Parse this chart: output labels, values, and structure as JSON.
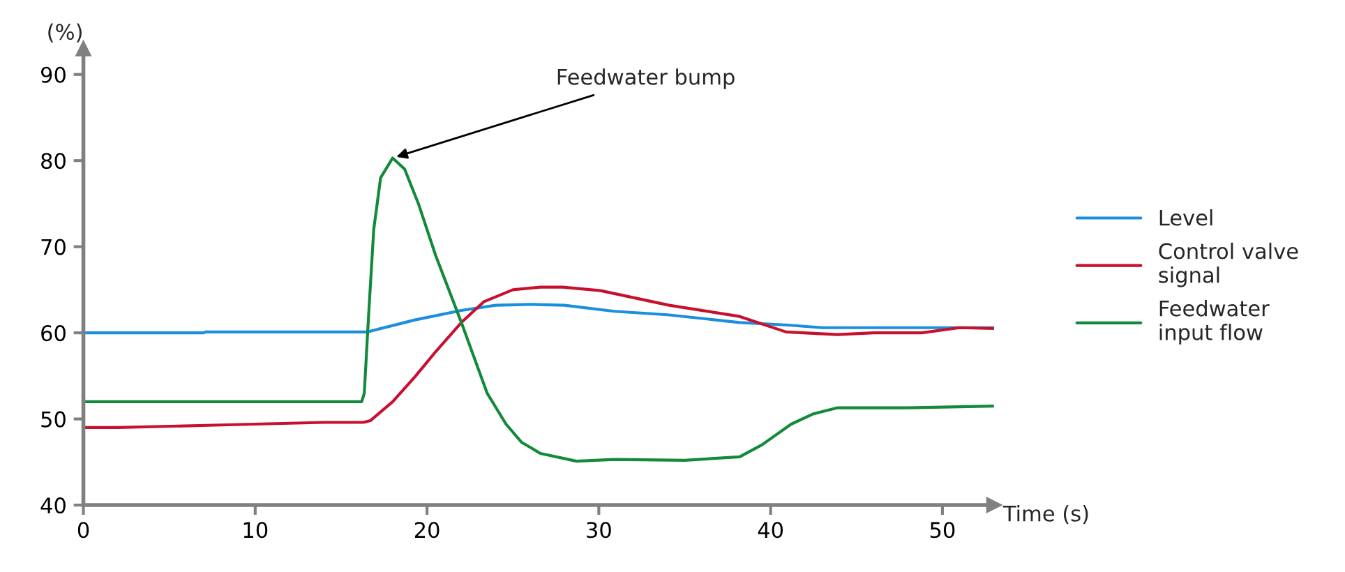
{
  "chart_data": {
    "type": "line",
    "xlabel": "Time (s)",
    "ylabel": "(%)",
    "xlim": [
      0,
      53
    ],
    "xticks": [
      0,
      10,
      20,
      30,
      40,
      50
    ],
    "ylim": [
      40,
      93
    ],
    "yticks": [
      40,
      50,
      60,
      70,
      80,
      90
    ],
    "grid": false,
    "legend": "right",
    "marker": "none",
    "line_style": "solid",
    "annotations": [
      {
        "text": "Feedwater bump",
        "x": 18,
        "y": 80.3
      }
    ],
    "series": [
      {
        "name": "Level",
        "color": "#1a8fe0",
        "x": [
          0,
          7,
          7.1,
          16.5,
          19.3,
          22,
          24,
          26,
          28,
          30.9,
          34,
          38.2,
          41,
          43,
          48,
          53
        ],
        "values": [
          60,
          60,
          60.1,
          60.1,
          61.5,
          62.6,
          63.2,
          63.3,
          63.2,
          62.5,
          62.1,
          61.2,
          60.9,
          60.6,
          60.6,
          60.6
        ]
      },
      {
        "name": "Control valve\nsignal",
        "color": "#c8102e",
        "x": [
          0,
          2,
          8,
          14,
          16.3,
          16.7,
          18,
          19.3,
          20.5,
          22,
          23.3,
          25,
          26.6,
          27.9,
          30.1,
          34.1,
          38.2,
          40.9,
          43.9,
          46,
          48.8,
          51,
          53
        ],
        "values": [
          49,
          49,
          49.3,
          49.6,
          49.6,
          49.8,
          52,
          54.9,
          57.8,
          61.2,
          63.6,
          65,
          65.3,
          65.3,
          64.9,
          63.2,
          61.9,
          60.1,
          59.8,
          60,
          60,
          60.6,
          60.5
        ]
      },
      {
        "name": "Feedwater\ninput flow",
        "color": "#128a3a",
        "x": [
          0,
          8,
          16.2,
          16.35,
          16.6,
          16.9,
          17.3,
          18,
          18.7,
          19.5,
          20.5,
          22,
          23.5,
          24.6,
          25.5,
          26.6,
          28.7,
          30.9,
          35,
          38.2,
          39.5,
          41.2,
          42.5,
          43.9,
          48,
          53
        ],
        "values": [
          52,
          52,
          52,
          53,
          62,
          72,
          78,
          80.3,
          79,
          75,
          69,
          61.2,
          53,
          49.4,
          47.3,
          46,
          45.1,
          45.3,
          45.2,
          45.6,
          47,
          49.4,
          50.6,
          51.3,
          51.3,
          51.5
        ]
      }
    ]
  }
}
